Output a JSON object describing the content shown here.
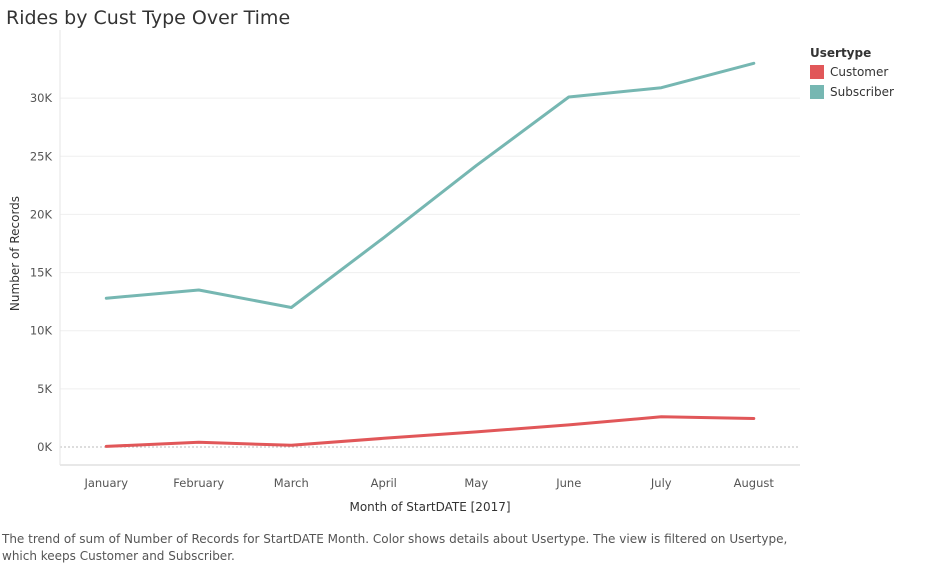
{
  "chart_data": {
    "type": "line",
    "title": "Rides by Cust Type Over Time",
    "xlabel": "Month of StartDATE [2017]",
    "ylabel": "Number of Records",
    "categories": [
      "January",
      "February",
      "March",
      "April",
      "May",
      "June",
      "July",
      "August"
    ],
    "series": [
      {
        "name": "Subscriber",
        "color": "#76b7b2",
        "values": [
          12800,
          13500,
          12000,
          18000,
          24200,
          30100,
          30900,
          33000
        ]
      },
      {
        "name": "Customer",
        "color": "#e15759",
        "values": [
          50,
          400,
          150,
          750,
          1300,
          1900,
          2600,
          2450
        ]
      }
    ],
    "yticks": [
      0,
      5000,
      10000,
      15000,
      20000,
      25000,
      30000
    ],
    "ytick_labels": [
      "0K",
      "5K",
      "10K",
      "15K",
      "20K",
      "25K",
      "30K"
    ],
    "ylim": [
      0,
      35000
    ],
    "grid": true,
    "legend_position": "top-right",
    "legend_title": "Usertype",
    "legend_order": [
      "Customer",
      "Subscriber"
    ]
  },
  "caption": "The trend of sum of Number of Records for StartDATE Month.  Color shows details about Usertype. The view is filtered on Usertype, which keeps Customer and Subscriber."
}
